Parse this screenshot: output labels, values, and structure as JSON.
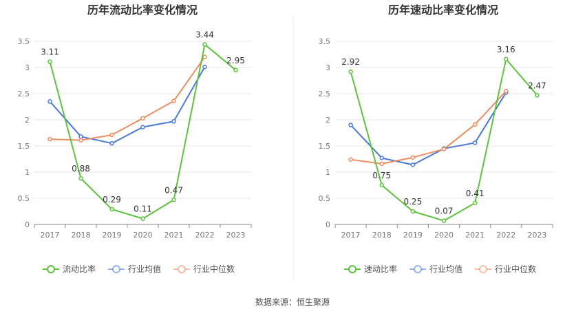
{
  "source_text": "数据来源：恒生聚源",
  "colors": {
    "company": "#5bc43c",
    "industry_avg": "#4878d8",
    "industry_median": "#f08c60",
    "axis": "#888888",
    "grid": "#e6e6e6",
    "divider": "#eeeeee"
  },
  "chart_data": [
    {
      "type": "line",
      "title": "历年流动比率变化情况",
      "categories": [
        "2017",
        "2018",
        "2019",
        "2020",
        "2021",
        "2022",
        "2023"
      ],
      "ylim": [
        0,
        3.5
      ],
      "yticks": [
        "0",
        "0.5",
        "1",
        "1.5",
        "2",
        "2.5",
        "3",
        "3.5"
      ],
      "grid": true,
      "legend_position": "bottom",
      "series": [
        {
          "name": "流动比率",
          "color": "#5bc43c",
          "values": [
            3.11,
            0.88,
            0.29,
            0.11,
            0.47,
            3.44,
            2.95
          ],
          "labels": [
            "3.11",
            "0.88",
            "0.29",
            "0.11",
            "0.47",
            "3.44",
            "2.95"
          ]
        },
        {
          "name": "行业均值",
          "color": "#4878d8",
          "values": [
            2.35,
            1.68,
            1.55,
            1.86,
            1.97,
            3.01,
            null
          ]
        },
        {
          "name": "行业中位数",
          "color": "#f08c60",
          "values": [
            1.63,
            1.61,
            1.71,
            2.03,
            2.36,
            3.2,
            null
          ]
        }
      ]
    },
    {
      "type": "line",
      "title": "历年速动比率变化情况",
      "categories": [
        "2017",
        "2018",
        "2019",
        "2020",
        "2021",
        "2022",
        "2023"
      ],
      "ylim": [
        0,
        3.5
      ],
      "yticks": [
        "0",
        "0.5",
        "1",
        "1.5",
        "2",
        "2.5",
        "3",
        "3.5"
      ],
      "grid": true,
      "legend_position": "bottom",
      "series": [
        {
          "name": "速动比率",
          "color": "#5bc43c",
          "values": [
            2.92,
            0.75,
            0.25,
            0.07,
            0.41,
            3.16,
            2.47
          ],
          "labels": [
            "2.92",
            "0.75",
            "0.25",
            "0.07",
            "0.41",
            "3.16",
            "2.47"
          ]
        },
        {
          "name": "行业均值",
          "color": "#4878d8",
          "values": [
            1.9,
            1.27,
            1.14,
            1.45,
            1.56,
            2.52,
            null
          ]
        },
        {
          "name": "行业中位数",
          "color": "#f08c60",
          "values": [
            1.24,
            1.16,
            1.28,
            1.44,
            1.91,
            2.55,
            null
          ]
        }
      ]
    }
  ]
}
